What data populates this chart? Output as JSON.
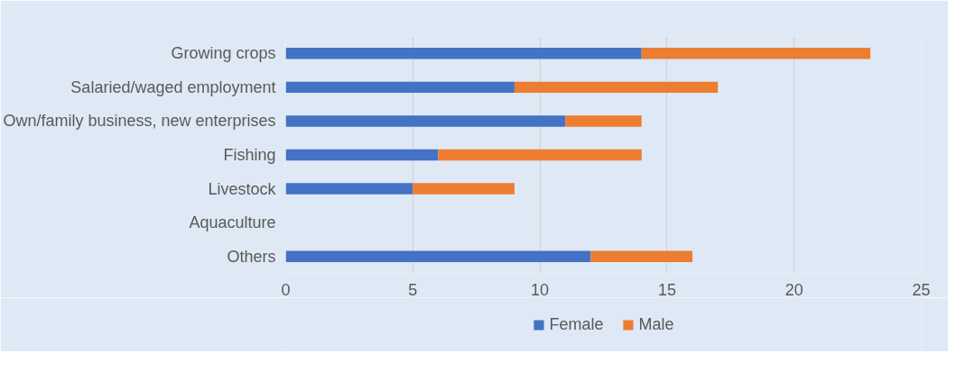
{
  "chart_data": {
    "type": "bar",
    "orientation": "horizontal",
    "stacked": true,
    "categories": [
      "Growing crops",
      "Salaried/waged employment",
      "Own/family business, new enterprises",
      "Fishing",
      "Livestock",
      "Aquaculture",
      "Others"
    ],
    "series": [
      {
        "name": "Female",
        "color": "#4472c4",
        "values": [
          14,
          9,
          11,
          6,
          5,
          null,
          12
        ]
      },
      {
        "name": "Male",
        "color": "#ed7d31",
        "values": [
          9,
          8,
          3,
          8,
          4,
          null,
          4
        ]
      }
    ],
    "xlim": [
      0,
      25
    ],
    "xticks": [
      0,
      5,
      10,
      15,
      20,
      25
    ],
    "grid": "x",
    "legend": "bottom"
  }
}
